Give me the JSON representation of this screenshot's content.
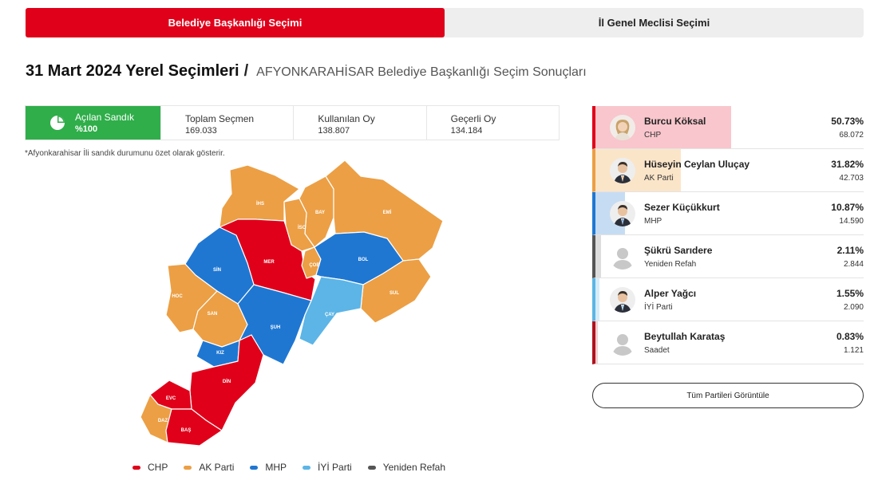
{
  "tabs": [
    {
      "label": "Belediye Başkanlığı Seçimi",
      "active": true
    },
    {
      "label": "İl Genel Meclisi Seçimi",
      "active": false
    }
  ],
  "heading": {
    "main": "31 Mart 2024 Yerel Seçimleri",
    "slash": "/",
    "sub": "AFYONKARAHİSAR Belediye Başkanlığı Seçim Sonuçları"
  },
  "stats": {
    "opened": {
      "label": "Açılan Sandık",
      "value": "%100"
    },
    "total_voters": {
      "label": "Toplam Seçmen",
      "value": "169.033"
    },
    "used_votes": {
      "label": "Kullanılan Oy",
      "value": "138.807"
    },
    "valid_votes": {
      "label": "Geçerli Oy",
      "value": "134.184"
    }
  },
  "note": "*Afyonkarahisar İli sandık durumunu özet olarak gösterir.",
  "map": {
    "districts": [
      {
        "code": "İHS",
        "party": "AK Parti"
      },
      {
        "code": "BAY",
        "party": "AK Parti"
      },
      {
        "code": "EMİ",
        "party": "AK Parti"
      },
      {
        "code": "İSC",
        "party": "AK Parti"
      },
      {
        "code": "MER",
        "party": "CHP"
      },
      {
        "code": "SİN",
        "party": "MHP"
      },
      {
        "code": "ÇOB",
        "party": "AK Parti"
      },
      {
        "code": "BOL",
        "party": "MHP"
      },
      {
        "code": "HOC",
        "party": "AK Parti"
      },
      {
        "code": "SUL",
        "party": "AK Parti"
      },
      {
        "code": "SAN",
        "party": "AK Parti"
      },
      {
        "code": "ŞUH",
        "party": "MHP"
      },
      {
        "code": "ÇAY",
        "party": "İYİ Parti"
      },
      {
        "code": "KIZ",
        "party": "MHP"
      },
      {
        "code": "DİN",
        "party": "CHP"
      },
      {
        "code": "EVC",
        "party": "CHP"
      },
      {
        "code": "DAZ",
        "party": "AK Parti"
      },
      {
        "code": "BAŞ",
        "party": "CHP"
      }
    ]
  },
  "legend": [
    {
      "label": "CHP",
      "color": "#e0001a"
    },
    {
      "label": "AK Parti",
      "color": "#ec9f44"
    },
    {
      "label": "MHP",
      "color": "#1f77d2"
    },
    {
      "label": "İYİ Parti",
      "color": "#5cb5e6"
    },
    {
      "label": "Yeniden Refah",
      "color": "#555555"
    }
  ],
  "candidates": [
    {
      "name": "Burcu Köksal",
      "party": "CHP",
      "percent": "50.73%",
      "votes": "68.072",
      "share": 0.5073,
      "color": "#e0001a",
      "tint": "#f8c6cc",
      "photo": "female"
    },
    {
      "name": "Hüseyin Ceylan Uluçay",
      "party": "AK Parti",
      "percent": "31.82%",
      "votes": "42.703",
      "share": 0.3182,
      "color": "#ec9f44",
      "tint": "#fbe5c9",
      "photo": "male"
    },
    {
      "name": "Sezer Küçükkurt",
      "party": "MHP",
      "percent": "10.87%",
      "votes": "14.590",
      "share": 0.1087,
      "color": "#1f77d2",
      "tint": "#c6dcf3",
      "photo": "male"
    },
    {
      "name": "Şükrü Sarıdere",
      "party": "Yeniden Refah",
      "percent": "2.11%",
      "votes": "2.844",
      "share": 0.0211,
      "color": "#555555",
      "tint": "#dddddd",
      "photo": "placeholder"
    },
    {
      "name": "Alper Yağcı",
      "party": "İYİ Parti",
      "percent": "1.55%",
      "votes": "2.090",
      "share": 0.0155,
      "color": "#5cb5e6",
      "tint": "#d6edf9",
      "photo": "male"
    },
    {
      "name": "Beytullah Karataş",
      "party": "Saadet",
      "percent": "0.83%",
      "votes": "1.121",
      "share": 0.0083,
      "color": "#b0121c",
      "tint": "#f0d0d2",
      "photo": "placeholder"
    }
  ],
  "all_parties_button": "Tüm Partileri Görüntüle"
}
